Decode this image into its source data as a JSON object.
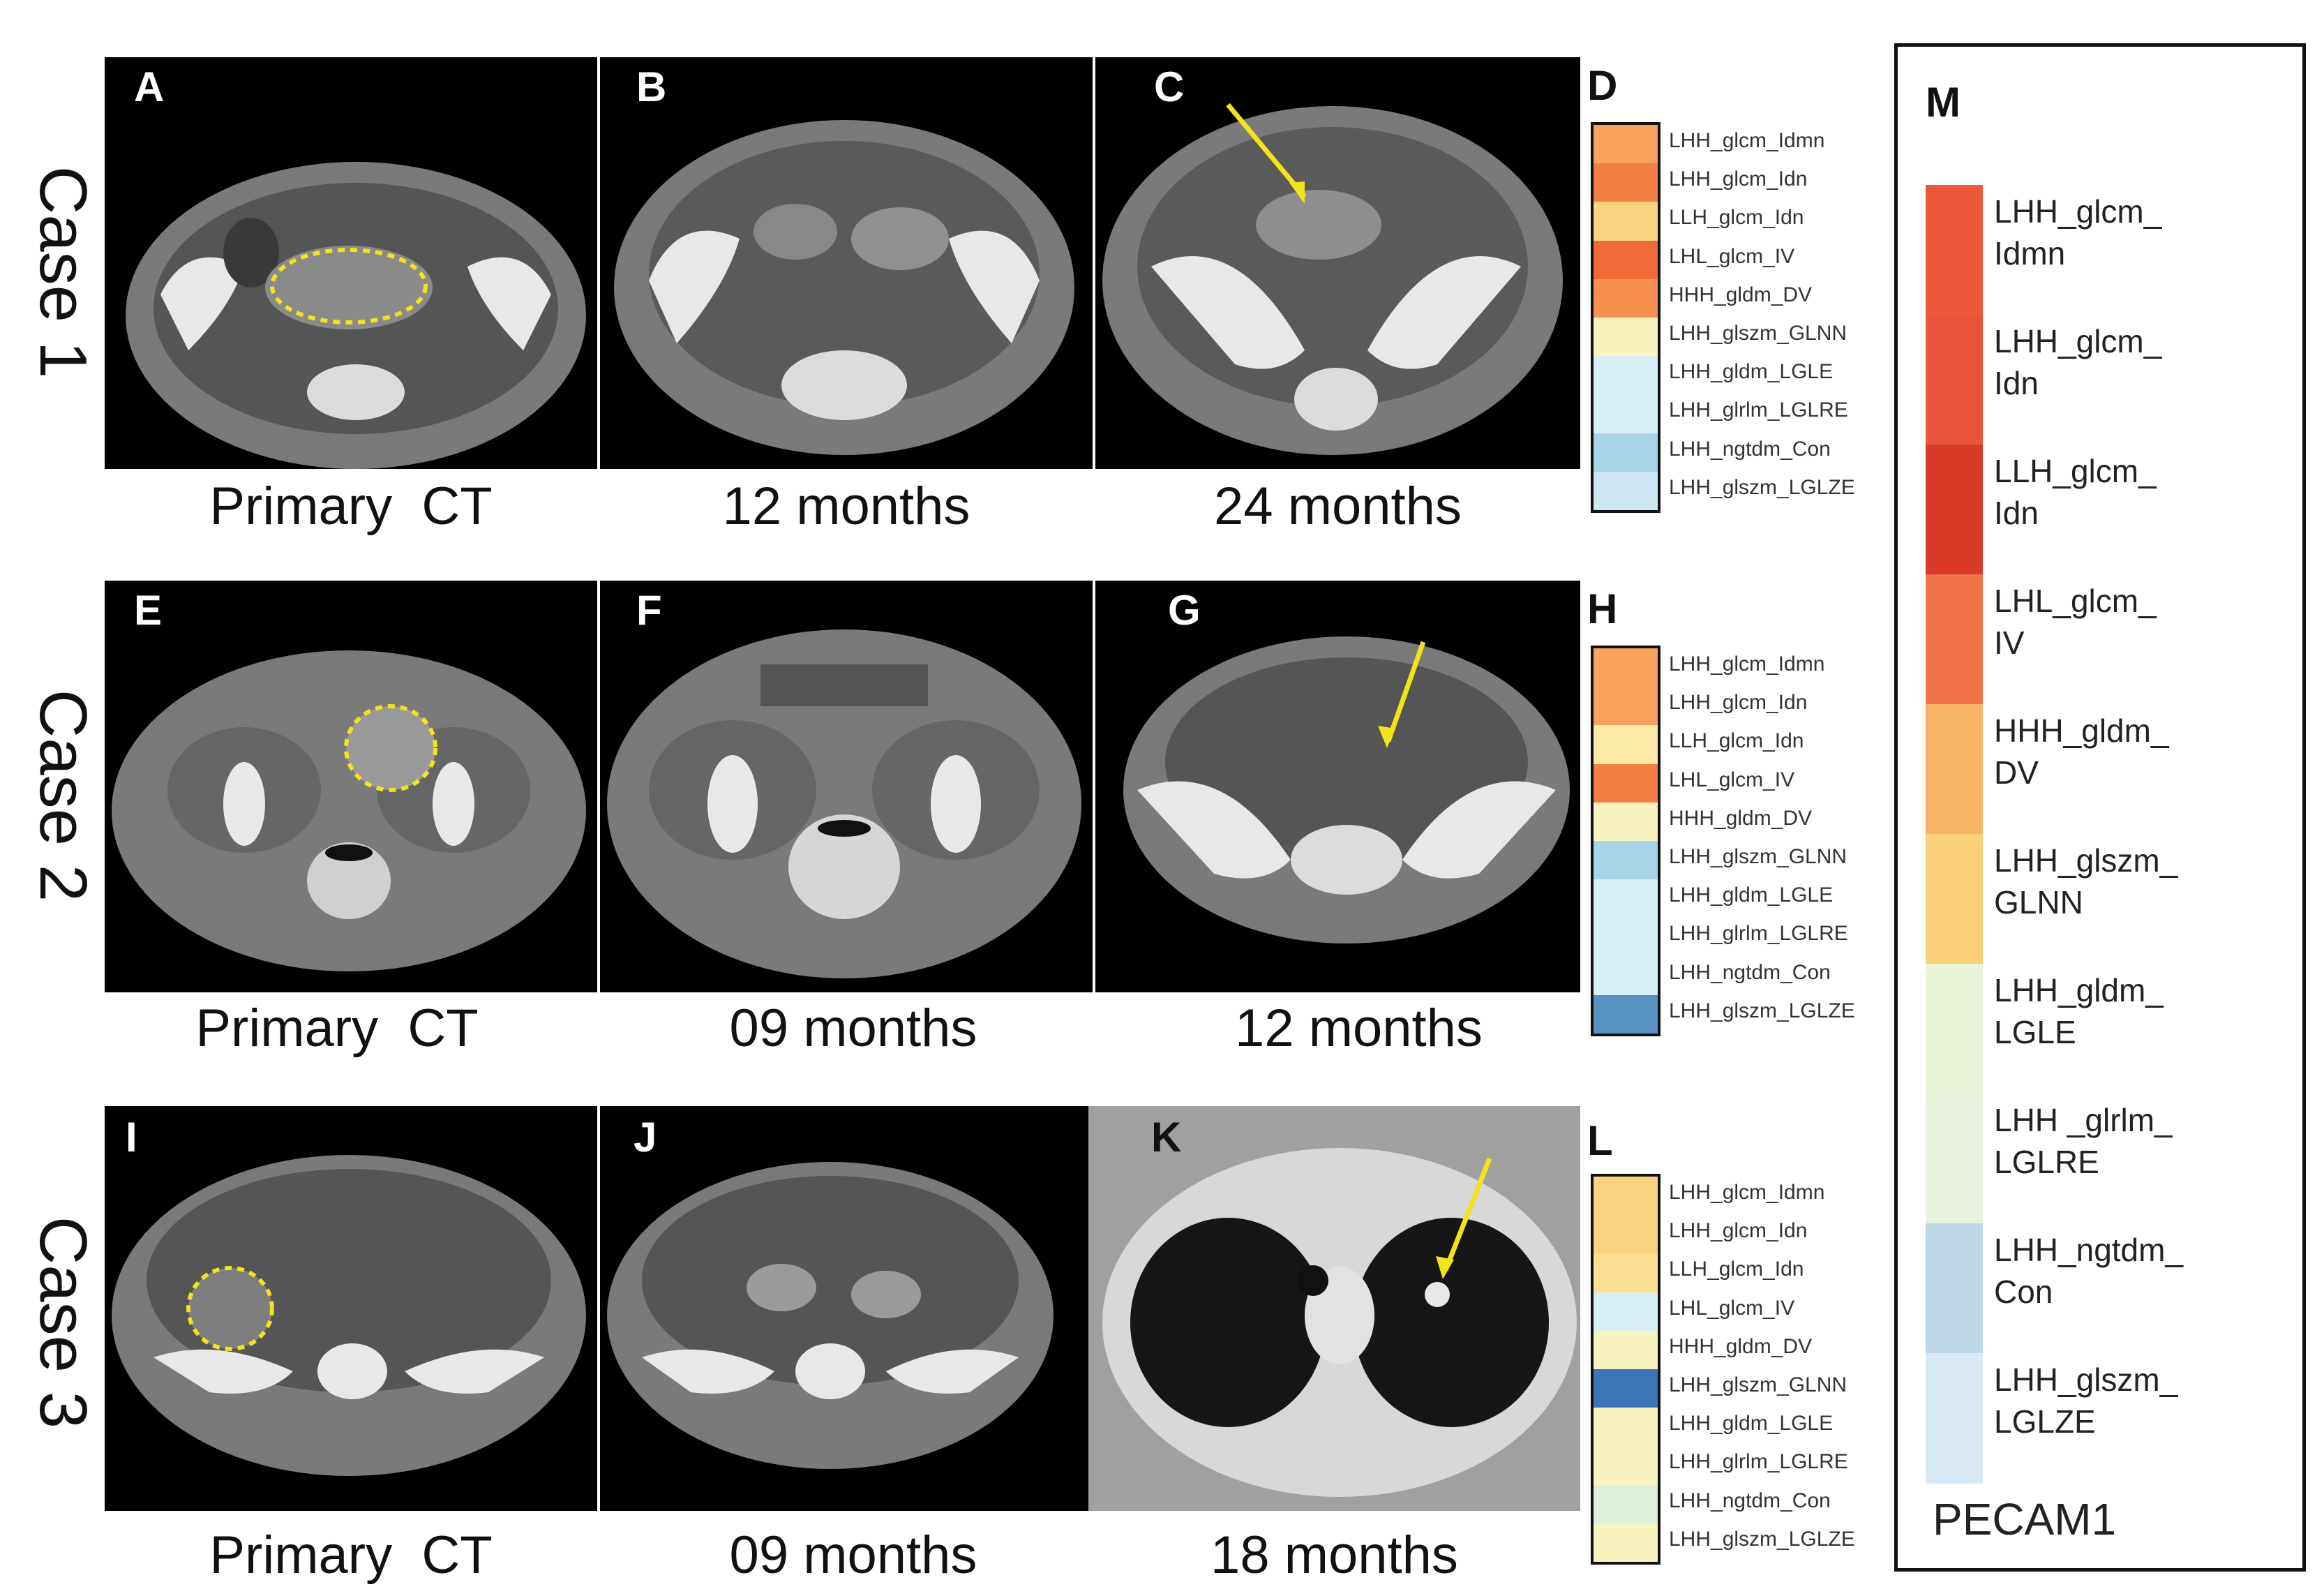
{
  "cases": [
    {
      "label": "Case 1",
      "panels": [
        {
          "letter": "A",
          "caption": "Primary  CT"
        },
        {
          "letter": "B",
          "caption": "12 months"
        },
        {
          "letter": "C",
          "caption": "24 months"
        }
      ],
      "heatmap_letter": "D",
      "heatmap_colors": [
        "#f8a25c",
        "#f47f43",
        "#fbd27f",
        "#f16b39",
        "#f7904e",
        "#fbf3bd",
        "#d8eef5",
        "#d8eef5",
        "#a9d4e7",
        "#cfe7f2"
      ]
    },
    {
      "label": "Case 2",
      "panels": [
        {
          "letter": "E",
          "caption": "Primary  CT"
        },
        {
          "letter": "F",
          "caption": "09 months"
        },
        {
          "letter": "G",
          "caption": "12 months"
        }
      ],
      "heatmap_letter": "H",
      "heatmap_colors": [
        "#f8a25c",
        "#f8a25c",
        "#fdeaa8",
        "#f47f43",
        "#f8f4c0",
        "#a9d4e7",
        "#d8eef5",
        "#d8eef5",
        "#d8eef5",
        "#5893c4"
      ]
    },
    {
      "label": "Case 3",
      "panels": [
        {
          "letter": "I",
          "caption": "Primary  CT"
        },
        {
          "letter": "J",
          "caption": "09 months"
        },
        {
          "letter": "K",
          "caption": "18 months"
        }
      ],
      "heatmap_letter": "L",
      "heatmap_colors": [
        "#fbd27f",
        "#fbd27f",
        "#fcdf92",
        "#d8eef5",
        "#f8f4c0",
        "#3d74b8",
        "#f8f4c0",
        "#f8f4c0",
        "#ddeedd",
        "#f8f4c0"
      ]
    }
  ],
  "heatmap_labels": [
    "LHH_glcm_Idmn",
    "LHH_glcm_Idn",
    "LLH_glcm_Idn",
    "LHL_glcm_IV",
    "HHH_gldm_DV",
    "LHH_glszm_GLNN",
    "LHH_gldm_LGLE",
    "LHH_glrlm_LGLRE",
    "LHH_ngtdm_Con",
    "LHH_glszm_LGLZE"
  ],
  "legend": {
    "letter": "M",
    "gene": "PECAM1",
    "items": [
      {
        "label": "LHH_glcm_\nIdmn",
        "color": "#ea5a3a"
      },
      {
        "label": "LHH_glcm_\nIdn",
        "color": "#e9553a"
      },
      {
        "label": "LLH_glcm_\nIdn",
        "color": "#d93a2a"
      },
      {
        "label": "LHL_glcm_\nIV",
        "color": "#f07447"
      },
      {
        "label": "HHH_gldm_\nDV",
        "color": "#f8b366"
      },
      {
        "label": "LHH_glszm_\nGLNN",
        "color": "#fbd07c"
      },
      {
        "label": "LHH_gldm_\nLGLE",
        "color": "#eaf4d8"
      },
      {
        "label": "LHH _glrlm_\nLGLRE",
        "color": "#e8f2dc"
      },
      {
        "label": "LHH_ngtdm_\nCon",
        "color": "#bcd8e8"
      },
      {
        "label": "LHH_glszm_\nLGLZE",
        "color": "#d7eaf3"
      }
    ]
  }
}
